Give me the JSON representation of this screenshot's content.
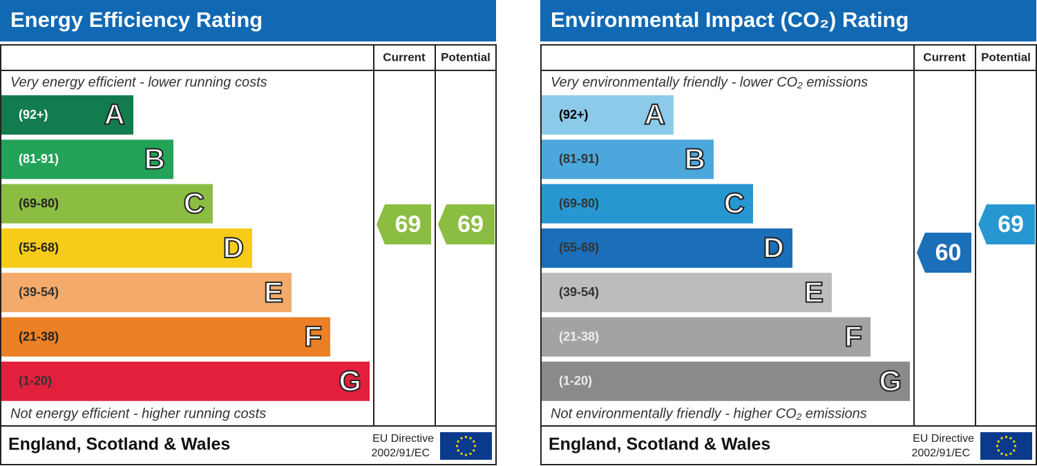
{
  "panels": [
    {
      "title": "Energy Efficiency Rating",
      "columns": [
        "Current",
        "Potential"
      ],
      "top_note": "Very energy efficient - lower running costs",
      "bands": [
        {
          "range": "(92+)",
          "letter": "A"
        },
        {
          "range": "(81-91)",
          "letter": "B"
        },
        {
          "range": "(69-80)",
          "letter": "C"
        },
        {
          "range": "(55-68)",
          "letter": "D"
        },
        {
          "range": "(39-54)",
          "letter": "E"
        },
        {
          "range": "(21-38)",
          "letter": "F"
        },
        {
          "range": "(1-20)",
          "letter": "G"
        }
      ],
      "bottom_note": "Not energy efficient - higher running costs",
      "current": 69,
      "potential": 69,
      "footer": {
        "region": "England, Scotland & Wales",
        "directive": [
          "EU Directive",
          "2002/91/EC"
        ]
      }
    },
    {
      "title": "Environmental Impact (CO₂) Rating",
      "columns": [
        "Current",
        "Potential"
      ],
      "top_note": "Very environmentally friendly - lower CO₂ emissions",
      "bands": [
        {
          "range": "(92+)",
          "letter": "A"
        },
        {
          "range": "(81-91)",
          "letter": "B"
        },
        {
          "range": "(69-80)",
          "letter": "C"
        },
        {
          "range": "(55-68)",
          "letter": "D"
        },
        {
          "range": "(39-54)",
          "letter": "E"
        },
        {
          "range": "(21-38)",
          "letter": "F"
        },
        {
          "range": "(1-20)",
          "letter": "G"
        }
      ],
      "bottom_note": "Not environmentally friendly - higher CO₂ emissions",
      "current": 60,
      "potential": 69,
      "footer": {
        "region": "England, Scotland & Wales",
        "directive": [
          "EU Directive",
          "2002/91/EC"
        ]
      }
    }
  ]
}
